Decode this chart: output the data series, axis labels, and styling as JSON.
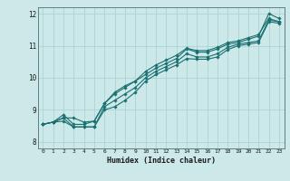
{
  "xlabel": "Humidex (Indice chaleur)",
  "ylabel": "",
  "background_color": "#cce8e8",
  "line_color": "#1a7070",
  "grid_color": "#aad4d4",
  "xlim": [
    -0.5,
    23.5
  ],
  "ylim": [
    7.8,
    12.2
  ],
  "xticks": [
    0,
    1,
    2,
    3,
    4,
    5,
    6,
    7,
    8,
    9,
    10,
    11,
    12,
    13,
    14,
    15,
    16,
    17,
    18,
    19,
    20,
    21,
    22,
    23
  ],
  "yticks": [
    8,
    9,
    10,
    11,
    12
  ],
  "series": [
    [
      8.55,
      8.62,
      8.75,
      8.47,
      8.47,
      8.47,
      9.1,
      9.3,
      9.5,
      9.7,
      10.0,
      10.2,
      10.35,
      10.5,
      10.75,
      10.65,
      10.65,
      10.75,
      10.95,
      11.05,
      11.1,
      11.15,
      11.8,
      11.75
    ],
    [
      8.55,
      8.62,
      8.85,
      8.55,
      8.55,
      8.65,
      9.2,
      9.55,
      9.75,
      9.9,
      10.1,
      10.3,
      10.45,
      10.6,
      10.9,
      10.8,
      10.8,
      10.9,
      11.05,
      11.1,
      11.2,
      11.3,
      12.0,
      11.85
    ],
    [
      8.55,
      8.62,
      8.65,
      8.47,
      8.47,
      8.47,
      9.0,
      9.1,
      9.3,
      9.55,
      9.9,
      10.1,
      10.25,
      10.4,
      10.6,
      10.58,
      10.58,
      10.65,
      10.88,
      11.0,
      11.05,
      11.1,
      11.75,
      11.7
    ],
    [
      8.55,
      8.62,
      8.75,
      8.75,
      8.62,
      8.65,
      9.2,
      9.5,
      9.7,
      9.9,
      10.2,
      10.4,
      10.55,
      10.7,
      10.92,
      10.85,
      10.85,
      10.95,
      11.1,
      11.15,
      11.25,
      11.35,
      11.85,
      11.75
    ]
  ]
}
